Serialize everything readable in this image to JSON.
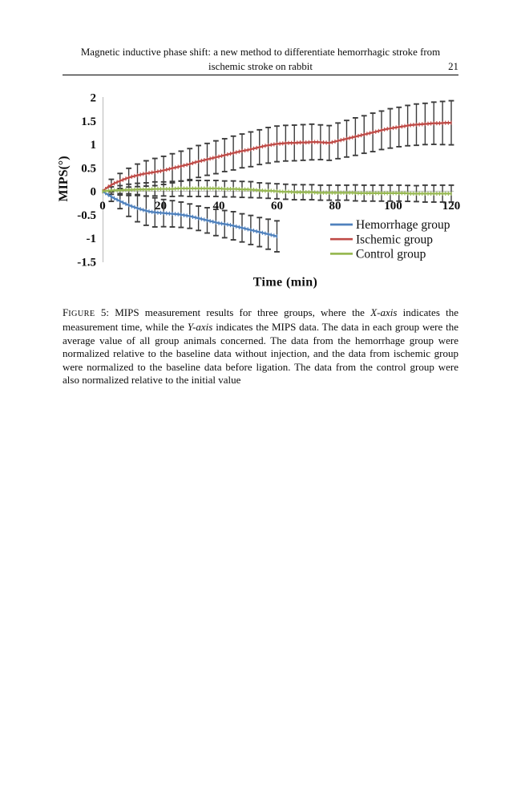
{
  "header": {
    "title_line1": "Magnetic inductive phase shift: a new method to differentiate hemorrhagic stroke from",
    "title_line2": "ischemic stroke on rabbit",
    "page_number": "21"
  },
  "caption": {
    "segments": [
      {
        "text": "F",
        "style": "normal"
      },
      {
        "text": "IGURE",
        "style": "smallcaps"
      },
      {
        "text": " 5: MIPS measurement results for three groups, where the ",
        "style": "normal"
      },
      {
        "text": "X-axis",
        "style": "italic"
      },
      {
        "text": " indicates the measurement time, while the ",
        "style": "normal"
      },
      {
        "text": "Y-axis",
        "style": "italic"
      },
      {
        "text": " indicates the MIPS data. The data in each group were the average value of all group animals concerned. The data from the hemorrhage group were normalized relative to the baseline data without injection, and the data from ischemic group were normalized to the baseline data before ligation. The data from the control group were also normalized relative to the initial value",
        "style": "normal"
      }
    ]
  },
  "chart_data": {
    "type": "line",
    "title": "",
    "xlabel": "Time (min)",
    "ylabel": "MIPS(°)",
    "xlim": [
      0,
      120
    ],
    "ylim": [
      -1.5,
      2
    ],
    "x_ticks": [
      0,
      20,
      40,
      60,
      80,
      100,
      120
    ],
    "y_ticks": [
      2,
      1.5,
      1,
      0.5,
      0,
      -0.5,
      -1,
      -1.5
    ],
    "grid": "horizontal zero-line only",
    "legend_position": "right-middle, no border",
    "axis_color": "#c2c2c2",
    "error_bar_color": "#3c3c3c",
    "series": [
      {
        "name": "Hemorrhage group",
        "color": "#4f81bd",
        "t": [
          0,
          2,
          4,
          6,
          8,
          10,
          12,
          14,
          16,
          18,
          20,
          22,
          24,
          26,
          28,
          30,
          32,
          34,
          36,
          38,
          40,
          42,
          44,
          46,
          48,
          50,
          52,
          54,
          56,
          58,
          60
        ],
        "values": [
          0,
          -0.08,
          -0.15,
          -0.21,
          -0.27,
          -0.32,
          -0.36,
          -0.4,
          -0.43,
          -0.45,
          -0.46,
          -0.47,
          -0.48,
          -0.49,
          -0.51,
          -0.53,
          -0.56,
          -0.59,
          -0.62,
          -0.65,
          -0.68,
          -0.7,
          -0.72,
          -0.75,
          -0.78,
          -0.81,
          -0.84,
          -0.87,
          -0.9,
          -0.93,
          -0.96
        ],
        "error_t": [
          3,
          6,
          9,
          12,
          15,
          18,
          21,
          24,
          27,
          30,
          33,
          36,
          39,
          42,
          45,
          48,
          51,
          54,
          57,
          60
        ],
        "error_mag": [
          0.1,
          0.16,
          0.24,
          0.29,
          0.31,
          0.31,
          0.29,
          0.28,
          0.27,
          0.26,
          0.26,
          0.27,
          0.28,
          0.29,
          0.3,
          0.3,
          0.31,
          0.31,
          0.32,
          0.33
        ]
      },
      {
        "name": "Ischemic group",
        "color": "#bf4b47",
        "t": [
          0,
          2,
          4,
          6,
          8,
          10,
          12,
          14,
          16,
          18,
          20,
          22,
          24,
          26,
          28,
          30,
          32,
          34,
          36,
          38,
          40,
          42,
          44,
          46,
          48,
          50,
          52,
          54,
          56,
          58,
          60,
          62,
          64,
          66,
          68,
          70,
          72,
          74,
          76,
          78,
          80,
          82,
          84,
          86,
          88,
          90,
          92,
          94,
          96,
          98,
          100,
          102,
          104,
          106,
          108,
          110,
          112,
          114,
          116,
          118,
          120
        ],
        "values": [
          0,
          0.1,
          0.17,
          0.22,
          0.27,
          0.31,
          0.34,
          0.37,
          0.39,
          0.41,
          0.43,
          0.46,
          0.49,
          0.52,
          0.55,
          0.58,
          0.62,
          0.65,
          0.68,
          0.71,
          0.74,
          0.77,
          0.8,
          0.83,
          0.86,
          0.88,
          0.91,
          0.94,
          0.97,
          0.99,
          1.01,
          1.02,
          1.03,
          1.03,
          1.04,
          1.04,
          1.05,
          1.05,
          1.04,
          1.03,
          1.06,
          1.09,
          1.12,
          1.15,
          1.18,
          1.21,
          1.24,
          1.27,
          1.3,
          1.33,
          1.35,
          1.37,
          1.39,
          1.41,
          1.42,
          1.43,
          1.44,
          1.45,
          1.45,
          1.46,
          1.46
        ],
        "error_t": [
          3,
          6,
          9,
          12,
          15,
          18,
          21,
          24,
          27,
          30,
          33,
          36,
          39,
          42,
          45,
          48,
          51,
          54,
          57,
          60,
          63,
          66,
          69,
          72,
          75,
          78,
          81,
          84,
          87,
          90,
          93,
          96,
          99,
          102,
          105,
          108,
          111,
          114,
          117,
          120
        ],
        "error_mag": [
          0.12,
          0.16,
          0.2,
          0.24,
          0.27,
          0.29,
          0.3,
          0.31,
          0.32,
          0.33,
          0.34,
          0.34,
          0.35,
          0.35,
          0.36,
          0.36,
          0.37,
          0.37,
          0.38,
          0.38,
          0.38,
          0.38,
          0.38,
          0.38,
          0.37,
          0.37,
          0.38,
          0.39,
          0.4,
          0.4,
          0.41,
          0.41,
          0.42,
          0.42,
          0.43,
          0.44,
          0.44,
          0.45,
          0.46,
          0.47
        ]
      },
      {
        "name": "Control group",
        "color": "#98b954",
        "t": [
          0,
          2,
          4,
          6,
          8,
          10,
          12,
          14,
          16,
          18,
          20,
          22,
          24,
          26,
          28,
          30,
          32,
          34,
          36,
          38,
          40,
          42,
          44,
          46,
          48,
          50,
          52,
          54,
          56,
          58,
          60,
          62,
          64,
          66,
          68,
          70,
          72,
          74,
          76,
          78,
          80,
          82,
          84,
          86,
          88,
          90,
          92,
          94,
          96,
          98,
          100,
          102,
          104,
          106,
          108,
          110,
          112,
          114,
          116,
          118,
          120
        ],
        "values": [
          0,
          0.01,
          0.02,
          0.02,
          0.03,
          0.03,
          0.04,
          0.04,
          0.04,
          0.05,
          0.05,
          0.05,
          0.05,
          0.06,
          0.06,
          0.06,
          0.06,
          0.06,
          0.06,
          0.06,
          0.06,
          0.05,
          0.05,
          0.05,
          0.04,
          0.04,
          0.03,
          0.02,
          0.01,
          0.01,
          0.0,
          -0.01,
          -0.01,
          -0.02,
          -0.02,
          -0.02,
          -0.02,
          -0.03,
          -0.03,
          -0.03,
          -0.03,
          -0.03,
          -0.03,
          -0.03,
          -0.04,
          -0.04,
          -0.04,
          -0.04,
          -0.04,
          -0.04,
          -0.04,
          -0.04,
          -0.04,
          -0.05,
          -0.05,
          -0.05,
          -0.05,
          -0.05,
          -0.05,
          -0.05,
          -0.05
        ],
        "error_t": [
          3,
          6,
          9,
          12,
          15,
          18,
          21,
          24,
          27,
          30,
          33,
          36,
          39,
          42,
          45,
          48,
          51,
          54,
          57,
          60,
          63,
          66,
          69,
          72,
          75,
          78,
          81,
          84,
          87,
          90,
          93,
          96,
          99,
          102,
          105,
          108,
          111,
          114,
          117,
          120
        ],
        "error_mag": [
          0.08,
          0.1,
          0.12,
          0.13,
          0.14,
          0.15,
          0.15,
          0.16,
          0.16,
          0.17,
          0.17,
          0.17,
          0.17,
          0.17,
          0.17,
          0.17,
          0.17,
          0.16,
          0.16,
          0.16,
          0.16,
          0.16,
          0.16,
          0.16,
          0.16,
          0.16,
          0.16,
          0.16,
          0.17,
          0.17,
          0.17,
          0.17,
          0.17,
          0.17,
          0.17,
          0.17,
          0.18,
          0.18,
          0.18,
          0.18
        ]
      }
    ]
  }
}
